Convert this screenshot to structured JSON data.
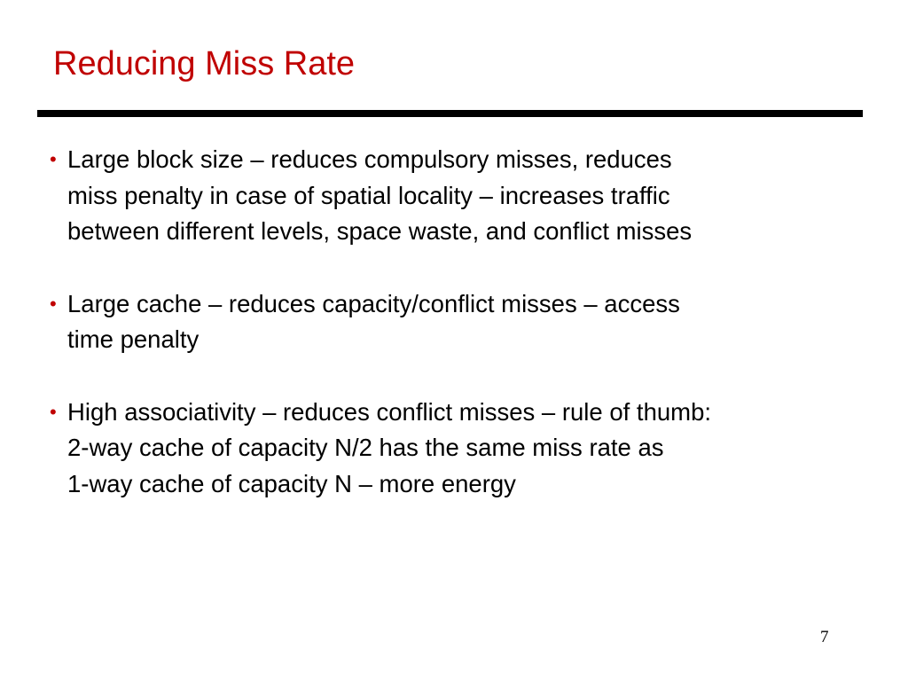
{
  "slide": {
    "title": "Reducing Miss Rate",
    "bullets": [
      {
        "lines": [
          "Large block size – reduces compulsory misses, reduces",
          "miss penalty in case of spatial locality – increases traffic",
          "between different levels, space waste, and conflict misses"
        ]
      },
      {
        "lines": [
          "Large cache – reduces capacity/conflict misses – access",
          "time penalty"
        ]
      },
      {
        "lines": [
          "High associativity – reduces conflict misses – rule of thumb:",
          "2-way cache of capacity N/2 has the same miss rate as",
          "1-way cache of capacity N – more energy"
        ]
      }
    ],
    "page_number": "7",
    "colors": {
      "title": "#c00000",
      "bullet_mark": "#c00000",
      "rule": "#000000"
    }
  }
}
